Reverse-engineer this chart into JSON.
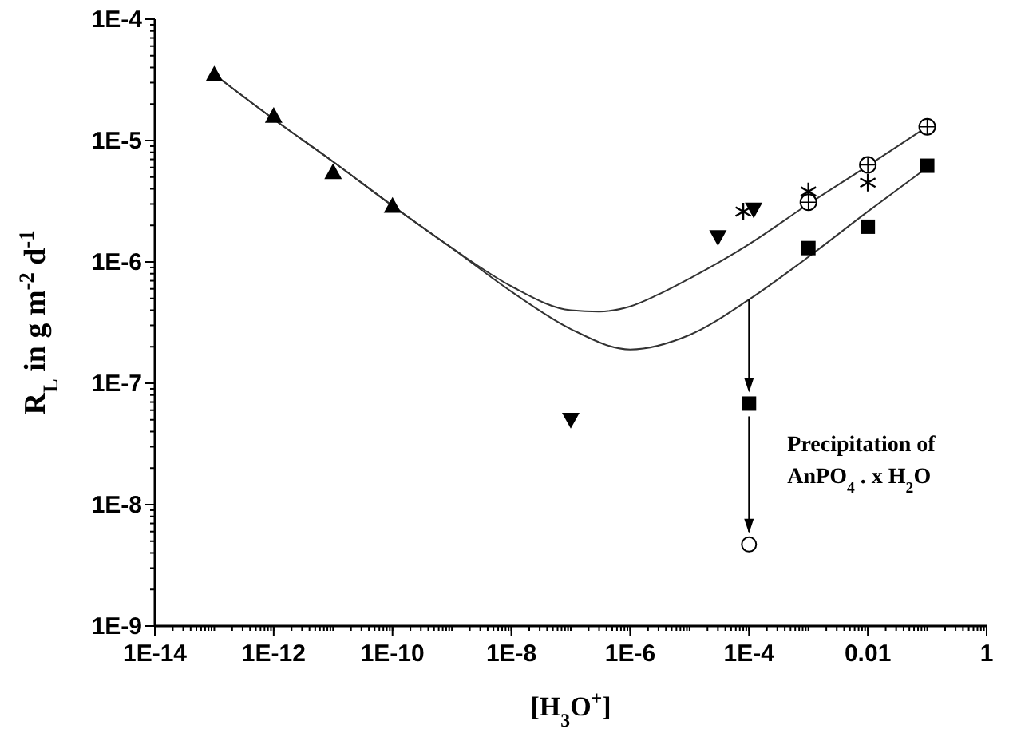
{
  "chart_data": {
    "type": "scatter",
    "xlabel": "[H$_{3}$O$^{+}$]",
    "ylabel": "R$_{L}$ in g m$^{-2}$ d$^{-1}$",
    "log": "xy",
    "grid": false,
    "xlim": [
      1e-14,
      1
    ],
    "ylim": [
      1e-09,
      0.0001
    ],
    "xticks": [
      {
        "value": 1e-14,
        "label": "1E-14"
      },
      {
        "value": 1e-12,
        "label": "1E-12"
      },
      {
        "value": 1e-10,
        "label": "1E-10"
      },
      {
        "value": 1e-08,
        "label": "1E-8"
      },
      {
        "value": 1e-06,
        "label": "1E-6"
      },
      {
        "value": 0.0001,
        "label": "1E-4"
      },
      {
        "value": 0.01,
        "label": "0.01"
      },
      {
        "value": 1,
        "label": "1"
      }
    ],
    "yticks": [
      {
        "value": 1e-09,
        "label": "1E-9"
      },
      {
        "value": 1e-08,
        "label": "1E-8"
      },
      {
        "value": 1e-07,
        "label": "1E-7"
      },
      {
        "value": 1e-06,
        "label": "1E-6"
      },
      {
        "value": 1e-05,
        "label": "1E-5"
      },
      {
        "value": 0.0001,
        "label": "1E-4"
      }
    ],
    "series": [
      {
        "type": "line",
        "color": "#333333",
        "marker": "none",
        "x": [
          1e-13,
          1e-12,
          1e-11,
          1e-10,
          1e-09,
          1e-08,
          1e-07,
          3e-07,
          1e-06,
          3e-06,
          1e-05,
          0.0001,
          0.001,
          0.01,
          0.1
        ],
        "values": [
          3.5e-05,
          1.5e-05,
          6.7e-06,
          2.9e-06,
          1.3e-06,
          6.3e-07,
          4e-07,
          3.9e-07,
          4.3e-07,
          5.4e-07,
          7.3e-07,
          1.4e-06,
          3e-06,
          6.2e-06,
          1.3e-05
        ]
      },
      {
        "type": "line",
        "color": "#333333",
        "marker": "none",
        "x": [
          1e-13,
          1e-12,
          1e-11,
          1e-10,
          1e-09,
          1e-08,
          1e-07,
          1e-06,
          1e-05,
          0.0001,
          0.001,
          0.01,
          0.1
        ],
        "values": [
          3.5e-05,
          1.5e-05,
          6.7e-06,
          2.9e-06,
          1.3e-06,
          5.7e-07,
          2.8e-07,
          1.9e-07,
          2.5e-07,
          4.9e-07,
          1.1e-06,
          2.6e-06,
          6e-06
        ]
      },
      {
        "color": "#000000",
        "marker": "triangle",
        "x": [
          1e-13,
          1e-12,
          1e-11,
          1e-10
        ],
        "values": [
          3.5e-05,
          1.6e-05,
          5.5e-06,
          2.9e-06
        ]
      },
      {
        "color": "#000000",
        "marker": "triangle-down",
        "x": [
          1e-07,
          3e-05,
          0.00012
        ],
        "values": [
          5e-08,
          1.6e-06,
          2.7e-06
        ]
      },
      {
        "color": "#000000",
        "marker": "cross",
        "x": [
          8e-05,
          0.001,
          0.01
        ],
        "values": [
          2.6e-06,
          3.8e-06,
          4.5e-06
        ]
      },
      {
        "color": "#000000",
        "marker": "circle-cross",
        "x": [
          0.001,
          0.01,
          0.1
        ],
        "values": [
          3.1e-06,
          6.3e-06,
          1.3e-05
        ]
      },
      {
        "color": "#000000",
        "marker": "square",
        "x": [
          0.0001,
          0.001,
          0.01,
          0.1
        ],
        "values": [
          6.8e-08,
          1.3e-06,
          1.95e-06,
          6.2e-06
        ]
      },
      {
        "color": "#000000",
        "marker": "circle-open",
        "x": [
          0.0001
        ],
        "values": [
          4.7e-09
        ]
      }
    ],
    "annotations": [
      "Precipitation of AnPO$_{4}$ . x H$_{2}$O"
    ]
  }
}
